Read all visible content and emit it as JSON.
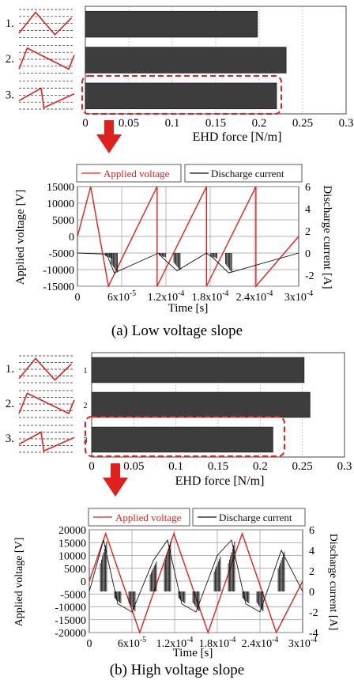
{
  "colors": {
    "voltage": "#e0201b",
    "current": "#111111",
    "bar": "#3d3d3d",
    "highlight": "#e0201b",
    "arrow": "#e0201b"
  },
  "panels": [
    {
      "caption": "(a) Low voltage slope",
      "bar_chart": {
        "waveform_labels": [
          "1.",
          "2.",
          "3."
        ],
        "side_labels": [],
        "xlabel": "EHD force [N/m]",
        "xticks": [
          "0",
          "0.05",
          "0.1",
          "0.15",
          "0.2",
          "0.25",
          "0.3"
        ]
      },
      "time_chart": {
        "legend": [
          "Applied voltage",
          "Discharge current"
        ],
        "ylabel_left": "Applied voltage [V]",
        "ylabel_right": "Discharge current [A]",
        "xlabel": "Time [s]",
        "yticks_left": [
          "15000",
          "10000",
          "5000",
          "0",
          "-5000",
          "-10000",
          "-15000"
        ],
        "yticks_right": [
          "6",
          "4",
          "2",
          "0",
          "-2"
        ],
        "xticks": [
          "0",
          "6x10",
          "1.2x10",
          "1.8x10",
          "2.4x10",
          "3x10"
        ],
        "xtick_exponents": [
          "",
          "-5",
          "-4",
          "-4",
          "-4",
          "-4"
        ]
      }
    },
    {
      "caption": "(b) High voltage slope",
      "bar_chart": {
        "waveform_labels": [
          "1.",
          "2.",
          "3."
        ],
        "side_labels": [
          "1",
          "2",
          "3"
        ],
        "xlabel": "EHD force [N/m]",
        "xticks": [
          "0",
          "0.05",
          "0.1",
          "0.15",
          "0.2",
          "0.25",
          "0.3"
        ]
      },
      "time_chart": {
        "legend": [
          "Applied voltage",
          "Discharge current"
        ],
        "ylabel_left": "Applied voltage [V]",
        "ylabel_right": "Discharge current [A]",
        "xlabel": "Time [s]",
        "yticks_left": [
          "20000",
          "15000",
          "10000",
          "5000",
          "0",
          "-5000",
          "-10000",
          "-15000",
          "-20000"
        ],
        "yticks_right": [
          "6",
          "4",
          "2",
          "0",
          "-2",
          "-4"
        ],
        "xticks": [
          "0",
          "6x10",
          "1.2x10",
          "1.8x10",
          "2.4x10",
          "3x10"
        ],
        "xtick_exponents": [
          "",
          "-5",
          "-4",
          "-4",
          "-4",
          "-4"
        ]
      }
    }
  ],
  "chart_data": [
    {
      "type": "bar",
      "orientation": "horizontal",
      "categories": [
        "1",
        "2",
        "3"
      ],
      "values": [
        0.198,
        0.231,
        0.22
      ],
      "xlabel": "EHD force [N/m]",
      "xlim": [
        0,
        0.3
      ],
      "grid": true,
      "highlighted_category": "3"
    },
    {
      "type": "line",
      "series": [
        {
          "name": "Applied voltage",
          "x": [
            0,
            1.8e-05,
            4.2e-05,
            4.2e-05,
            0.000108,
            0.000108,
            0.000175,
            0.000175,
            0.000242,
            0.000242,
            0.0003
          ],
          "y": [
            0,
            15000,
            -15000,
            -15000,
            15000,
            -15000,
            15000,
            -15000,
            15000,
            -15000,
            0
          ]
        },
        {
          "name": "Discharge current",
          "x": [
            0,
            4e-05,
            4.2e-05,
            5e-05,
            0.00011,
            0.000115,
            0.000135,
            0.000175,
            0.000185,
            0.000205,
            0.0003
          ],
          "y": [
            0,
            -0.1,
            -0.5,
            -1.8,
            0,
            -0.4,
            -1.6,
            0,
            -0.5,
            -1.8,
            0
          ]
        }
      ],
      "xlabel": "Time [s]",
      "ylabel": "Applied voltage [V]",
      "y2label": "Discharge current [A]",
      "xlim": [
        0,
        0.0003
      ],
      "ylim": [
        -15000,
        15000
      ],
      "y2lim": [
        -3,
        6
      ],
      "grid": true,
      "legend": "top"
    },
    {
      "type": "bar",
      "orientation": "horizontal",
      "categories": [
        "1",
        "2",
        "3"
      ],
      "values": [
        0.252,
        0.259,
        0.215
      ],
      "xlabel": "EHD force [N/m]",
      "xlim": [
        0,
        0.3
      ],
      "grid": true,
      "highlighted_category": "3"
    },
    {
      "type": "line",
      "series": [
        {
          "name": "Applied voltage",
          "x": [
            0,
            2.3e-05,
            2.3e-05,
            7.1e-05,
            7.1e-05,
            0.000119,
            0.000119,
            0.000167,
            0.000167,
            0.000215,
            0.000215,
            0.000263,
            0.000263,
            0.0003
          ],
          "y": [
            0,
            18500,
            18500,
            -20000,
            -20000,
            18500,
            18500,
            -20000,
            -20000,
            18500,
            18500,
            -20000,
            -20000,
            0
          ]
        },
        {
          "name": "Discharge current",
          "x": [
            0,
            2e-05,
            4e-05,
            6e-05,
            9e-05,
            0.00011,
            0.00013,
            0.00015,
            0.00018,
            0.0002,
            0.00022,
            0.00024,
            0.00027,
            0.0003
          ],
          "y": [
            0,
            5.0,
            -1.2,
            -2.0,
            3.0,
            5.0,
            -1.2,
            -2.0,
            3.5,
            5.0,
            -1.2,
            -2.0,
            4.0,
            0
          ]
        }
      ],
      "xlabel": "Time [s]",
      "ylabel": "Applied voltage [V]",
      "y2label": "Discharge current [A]",
      "xlim": [
        0,
        0.0003
      ],
      "ylim": [
        -20000,
        20000
      ],
      "y2lim": [
        -4,
        6
      ],
      "grid": true,
      "legend": "top"
    }
  ]
}
